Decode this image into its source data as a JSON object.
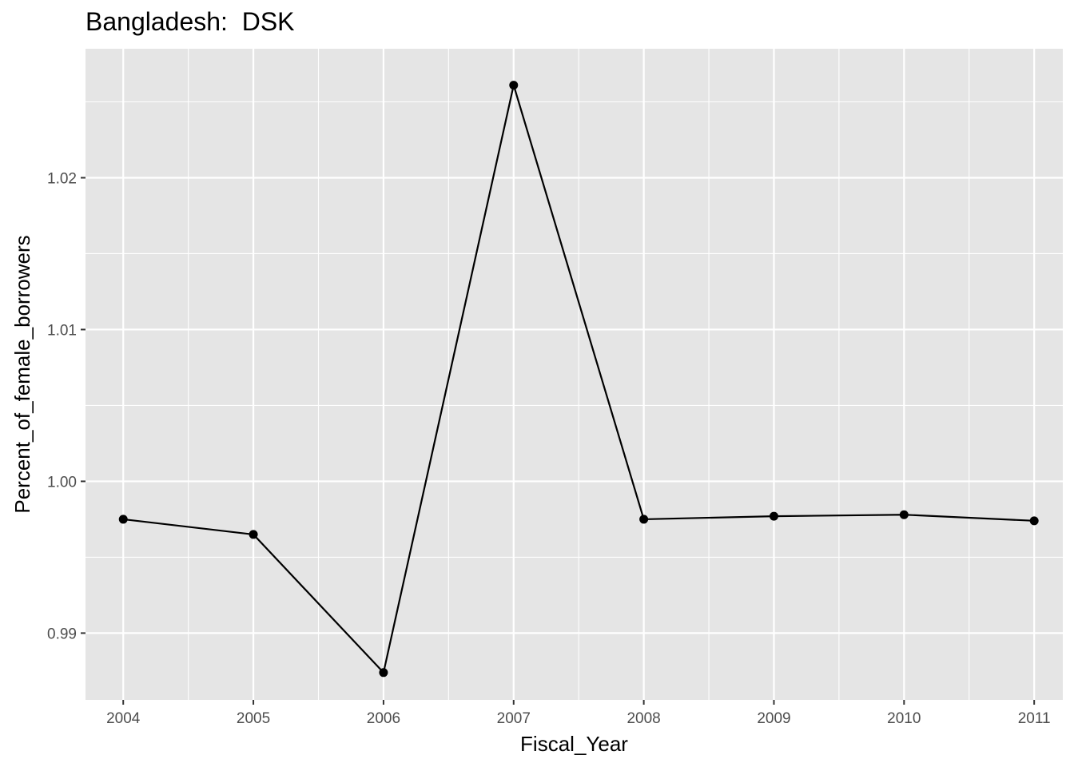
{
  "chart_data": {
    "type": "line",
    "title": "Bangladesh:  DSK",
    "xlabel": "Fiscal_Year",
    "ylabel": "Percent_of_female_borrowers",
    "x": [
      2004,
      2005,
      2006,
      2007,
      2008,
      2009,
      2010,
      2011
    ],
    "series": [
      {
        "values": [
          0.9975,
          0.9965,
          0.9874,
          1.0261,
          0.9975,
          0.9977,
          0.9978,
          0.9974
        ]
      }
    ],
    "xlim": [
      2003.71,
      2011.22
    ],
    "ylim": [
      0.9856,
      1.0285
    ],
    "x_ticks": [
      2004,
      2005,
      2006,
      2007,
      2008,
      2009,
      2010,
      2011
    ],
    "y_ticks": [
      0.99,
      1.0,
      1.01,
      1.02
    ],
    "y_tick_labels": [
      "0.99",
      "1.00",
      "1.01",
      "1.02"
    ],
    "grid": true,
    "colors": {
      "panel": "#e5e5e5",
      "grid": "#ffffff",
      "line": "#000000",
      "tick_text": "#4d4d4d"
    }
  }
}
